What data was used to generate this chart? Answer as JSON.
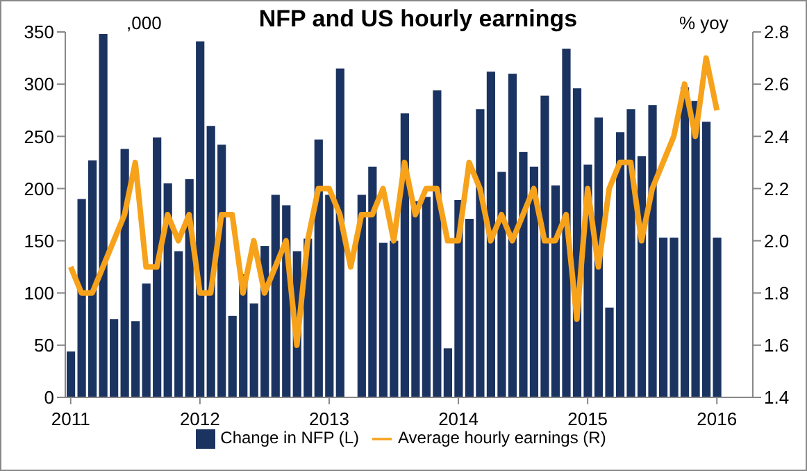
{
  "chart_data": {
    "type": "bar",
    "title": "NFP and US hourly earnings",
    "ylabel": ",000",
    "y2label": "% yoy",
    "categories": [
      "2011",
      null,
      null,
      null,
      null,
      null,
      null,
      null,
      null,
      null,
      null,
      null,
      "2012",
      null,
      null,
      null,
      null,
      null,
      null,
      null,
      null,
      null,
      null,
      null,
      "2013",
      null,
      null,
      null,
      null,
      null,
      null,
      null,
      null,
      null,
      null,
      null,
      "2014",
      null,
      null,
      null,
      null,
      null,
      null,
      null,
      null,
      null,
      null,
      null,
      "2015",
      null,
      null,
      null,
      null,
      null,
      null,
      null,
      null,
      null,
      null,
      null,
      "2016"
    ],
    "series": [
      {
        "name": "Change in NFP (L)",
        "color": "#1b3360",
        "values": [
          44,
          190,
          227,
          348,
          75,
          238,
          73,
          109,
          249,
          205,
          140,
          209,
          341,
          260,
          242,
          78,
          118,
          90,
          145,
          194,
          184,
          140,
          152,
          247,
          194,
          315,
          null,
          194,
          221,
          148,
          150,
          272,
          188,
          192,
          294,
          47,
          189,
          171,
          276,
          312,
          216,
          310,
          235,
          221,
          289,
          203,
          334,
          296,
          223,
          268,
          86,
          254,
          276,
          231,
          280,
          153,
          153,
          297,
          284,
          264,
          153
        ]
      },
      {
        "name": "Average hourly earnings (R)",
        "type": "line",
        "axis": "y2",
        "color": "#f7a21b",
        "values": [
          1.9,
          1.8,
          1.8,
          1.9,
          2.0,
          2.1,
          2.3,
          1.9,
          1.9,
          2.1,
          2.0,
          2.1,
          1.8,
          1.8,
          2.1,
          2.1,
          1.8,
          2.0,
          1.8,
          1.9,
          2.0,
          1.6,
          2.0,
          2.2,
          2.2,
          2.1,
          1.9,
          2.1,
          2.1,
          2.2,
          2.0,
          2.3,
          2.1,
          2.2,
          2.2,
          2.0,
          2.0,
          2.3,
          2.2,
          2.0,
          2.1,
          2.0,
          2.1,
          2.2,
          2.0,
          2.0,
          2.1,
          1.7,
          2.2,
          1.9,
          2.2,
          2.3,
          2.3,
          2.0,
          2.2,
          2.3,
          2.4,
          2.6,
          2.4,
          2.7,
          2.5
        ]
      }
    ],
    "ylim": [
      0,
      350
    ],
    "yticks": [
      0,
      50,
      100,
      150,
      200,
      250,
      300,
      350
    ],
    "y2lim": [
      1.4,
      2.8
    ],
    "y2ticks": [
      1.4,
      1.6,
      1.8,
      {
        "value": 2,
        "label": "2.0"
      },
      2.2,
      2.4,
      2.6,
      2.8
    ],
    "grid": false,
    "legend": "bottom",
    "marker": "none",
    "line_style": "solid"
  }
}
